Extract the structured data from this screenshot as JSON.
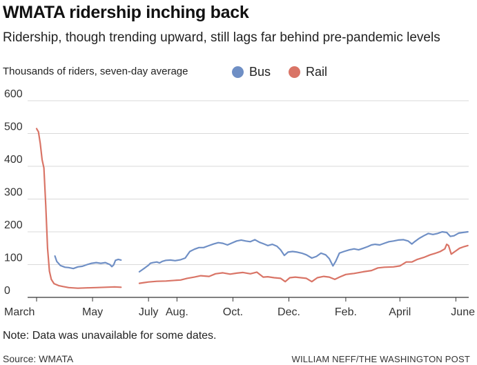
{
  "header": {
    "title": "WMATA ridership inching back",
    "subtitle": "Ridership, though trending upward, still lags far behind pre-pandemic levels"
  },
  "footer": {
    "note": "Note: Data was unavailable for some dates.",
    "source": "Source: WMATA",
    "credit": "WILLIAM NEFF/THE WASHINGTON POST"
  },
  "chart_data": {
    "type": "line",
    "ylabel": "Thousands of riders, seven-day average",
    "ylim": [
      0,
      600
    ],
    "yticks": [
      0,
      100,
      200,
      300,
      400,
      500,
      600
    ],
    "xlim": [
      "2020-03-01",
      "2021-06-15"
    ],
    "xticks": [
      {
        "label": "March",
        "date": "2020-03-01"
      },
      {
        "label": "May",
        "date": "2020-05-01"
      },
      {
        "label": "July",
        "date": "2020-07-01"
      },
      {
        "label": "Aug.",
        "date": "2020-08-01"
      },
      {
        "label": "Oct.",
        "date": "2020-10-01"
      },
      {
        "label": "Dec.",
        "date": "2020-12-01"
      },
      {
        "label": "Feb.",
        "date": "2021-02-01"
      },
      {
        "label": "April",
        "date": "2021-04-01"
      },
      {
        "label": "June",
        "date": "2021-06-01"
      }
    ],
    "grid": true,
    "legend": "top",
    "series": [
      {
        "name": "Bus",
        "color": "#6f8fc5",
        "segments": [
          [
            [
              "2020-03-21",
              126
            ],
            [
              "2020-03-23",
              110
            ],
            [
              "2020-03-27",
              97
            ],
            [
              "2020-04-01",
              92
            ],
            [
              "2020-04-05",
              91
            ],
            [
              "2020-04-10",
              88
            ],
            [
              "2020-04-15",
              93
            ],
            [
              "2020-04-20",
              95
            ],
            [
              "2020-04-25",
              100
            ],
            [
              "2020-04-30",
              104
            ],
            [
              "2020-05-05",
              106
            ],
            [
              "2020-05-10",
              104
            ],
            [
              "2020-05-15",
              106
            ],
            [
              "2020-05-20",
              100
            ],
            [
              "2020-05-22",
              94
            ],
            [
              "2020-05-24",
              99
            ],
            [
              "2020-05-26",
              113
            ],
            [
              "2020-05-29",
              116
            ],
            [
              "2020-06-01",
              114
            ]
          ],
          [
            [
              "2020-06-21",
              78
            ],
            [
              "2020-06-24",
              84
            ],
            [
              "2020-06-27",
              90
            ],
            [
              "2020-07-01",
              98
            ],
            [
              "2020-07-03",
              104
            ],
            [
              "2020-07-06",
              106
            ],
            [
              "2020-07-10",
              108
            ],
            [
              "2020-07-13",
              105
            ],
            [
              "2020-07-16",
              110
            ],
            [
              "2020-07-20",
              113
            ],
            [
              "2020-07-25",
              114
            ],
            [
              "2020-07-30",
              112
            ],
            [
              "2020-08-05",
              115
            ],
            [
              "2020-08-10",
              120
            ],
            [
              "2020-08-15",
              140
            ],
            [
              "2020-08-20",
              147
            ],
            [
              "2020-08-25",
              152
            ],
            [
              "2020-08-30",
              152
            ],
            [
              "2020-09-05",
              158
            ],
            [
              "2020-09-10",
              163
            ],
            [
              "2020-09-15",
              167
            ],
            [
              "2020-09-20",
              165
            ],
            [
              "2020-09-25",
              160
            ],
            [
              "2020-09-30",
              166
            ],
            [
              "2020-10-05",
              172
            ],
            [
              "2020-10-10",
              175
            ],
            [
              "2020-10-15",
              172
            ],
            [
              "2020-10-20",
              170
            ],
            [
              "2020-10-25",
              176
            ],
            [
              "2020-10-30",
              168
            ],
            [
              "2020-11-03",
              164
            ],
            [
              "2020-11-08",
              158
            ],
            [
              "2020-11-13",
              162
            ],
            [
              "2020-11-18",
              156
            ],
            [
              "2020-11-22",
              145
            ],
            [
              "2020-11-26",
              128
            ],
            [
              "2020-11-30",
              138
            ],
            [
              "2020-12-05",
              140
            ],
            [
              "2020-12-10",
              138
            ],
            [
              "2020-12-15",
              135
            ],
            [
              "2020-12-20",
              130
            ],
            [
              "2020-12-26",
              120
            ],
            [
              "2020-12-31",
              125
            ],
            [
              "2021-01-05",
              135
            ],
            [
              "2021-01-10",
              130
            ],
            [
              "2021-01-14",
              118
            ],
            [
              "2021-01-18",
              96
            ],
            [
              "2021-01-21",
              110
            ],
            [
              "2021-01-25",
              135
            ],
            [
              "2021-01-30",
              140
            ],
            [
              "2021-02-05",
              145
            ],
            [
              "2021-02-10",
              148
            ],
            [
              "2021-02-15",
              145
            ],
            [
              "2021-02-20",
              150
            ],
            [
              "2021-02-25",
              155
            ],
            [
              "2021-03-01",
              160
            ],
            [
              "2021-03-05",
              162
            ],
            [
              "2021-03-10",
              160
            ],
            [
              "2021-03-15",
              165
            ],
            [
              "2021-03-20",
              170
            ],
            [
              "2021-03-25",
              172
            ],
            [
              "2021-03-30",
              175
            ],
            [
              "2021-04-05",
              176
            ],
            [
              "2021-04-10",
              172
            ],
            [
              "2021-04-14",
              163
            ],
            [
              "2021-04-17",
              170
            ],
            [
              "2021-04-22",
              180
            ],
            [
              "2021-04-27",
              188
            ],
            [
              "2021-05-02",
              195
            ],
            [
              "2021-05-07",
              192
            ],
            [
              "2021-05-12",
              195
            ],
            [
              "2021-05-17",
              200
            ],
            [
              "2021-05-22",
              198
            ],
            [
              "2021-05-26",
              186
            ],
            [
              "2021-05-30",
              188
            ],
            [
              "2021-06-04",
              196
            ],
            [
              "2021-06-09",
              198
            ],
            [
              "2021-06-14",
              200
            ]
          ]
        ]
      },
      {
        "name": "Rail",
        "color": "#d97466",
        "segments": [
          [
            [
              "2020-03-01",
              515
            ],
            [
              "2020-03-03",
              505
            ],
            [
              "2020-03-05",
              470
            ],
            [
              "2020-03-07",
              420
            ],
            [
              "2020-03-09",
              395
            ],
            [
              "2020-03-11",
              280
            ],
            [
              "2020-03-13",
              150
            ],
            [
              "2020-03-15",
              80
            ],
            [
              "2020-03-17",
              55
            ],
            [
              "2020-03-20",
              42
            ],
            [
              "2020-03-25",
              36
            ],
            [
              "2020-03-30",
              33
            ],
            [
              "2020-04-05",
              30
            ],
            [
              "2020-04-15",
              28
            ],
            [
              "2020-04-25",
              29
            ],
            [
              "2020-05-05",
              30
            ],
            [
              "2020-05-15",
              31
            ],
            [
              "2020-05-25",
              32
            ],
            [
              "2020-06-01",
              31
            ]
          ],
          [
            [
              "2020-06-21",
              43
            ],
            [
              "2020-06-26",
              45
            ],
            [
              "2020-07-01",
              47
            ],
            [
              "2020-07-10",
              49
            ],
            [
              "2020-07-20",
              50
            ],
            [
              "2020-07-30",
              52
            ],
            [
              "2020-08-05",
              53
            ],
            [
              "2020-08-12",
              58
            ],
            [
              "2020-08-20",
              62
            ],
            [
              "2020-08-27",
              66
            ],
            [
              "2020-09-05",
              64
            ],
            [
              "2020-09-12",
              72
            ],
            [
              "2020-09-20",
              75
            ],
            [
              "2020-09-28",
              71
            ],
            [
              "2020-10-05",
              74
            ],
            [
              "2020-10-12",
              76
            ],
            [
              "2020-10-20",
              72
            ],
            [
              "2020-10-27",
              77
            ],
            [
              "2020-11-03",
              62
            ],
            [
              "2020-11-08",
              63
            ],
            [
              "2020-11-15",
              60
            ],
            [
              "2020-11-22",
              58
            ],
            [
              "2020-11-27",
              48
            ],
            [
              "2020-12-02",
              60
            ],
            [
              "2020-12-08",
              62
            ],
            [
              "2020-12-14",
              60
            ],
            [
              "2020-12-20",
              58
            ],
            [
              "2020-12-26",
              48
            ],
            [
              "2021-01-01",
              60
            ],
            [
              "2021-01-08",
              64
            ],
            [
              "2021-01-14",
              62
            ],
            [
              "2021-01-20",
              55
            ],
            [
              "2021-01-26",
              63
            ],
            [
              "2021-02-01",
              70
            ],
            [
              "2021-02-10",
              73
            ],
            [
              "2021-02-20",
              78
            ],
            [
              "2021-03-01",
              82
            ],
            [
              "2021-03-08",
              90
            ],
            [
              "2021-03-15",
              92
            ],
            [
              "2021-03-25",
              93
            ],
            [
              "2021-04-01",
              96
            ],
            [
              "2021-04-08",
              108
            ],
            [
              "2021-04-14",
              108
            ],
            [
              "2021-04-20",
              116
            ],
            [
              "2021-04-27",
              122
            ],
            [
              "2021-05-04",
              130
            ],
            [
              "2021-05-10",
              135
            ],
            [
              "2021-05-15",
              140
            ],
            [
              "2021-05-20",
              148
            ],
            [
              "2021-05-22",
              162
            ],
            [
              "2021-05-24",
              158
            ],
            [
              "2021-05-27",
              132
            ],
            [
              "2021-05-31",
              140
            ],
            [
              "2021-06-05",
              150
            ],
            [
              "2021-06-10",
              155
            ],
            [
              "2021-06-14",
              158
            ]
          ]
        ]
      }
    ]
  }
}
